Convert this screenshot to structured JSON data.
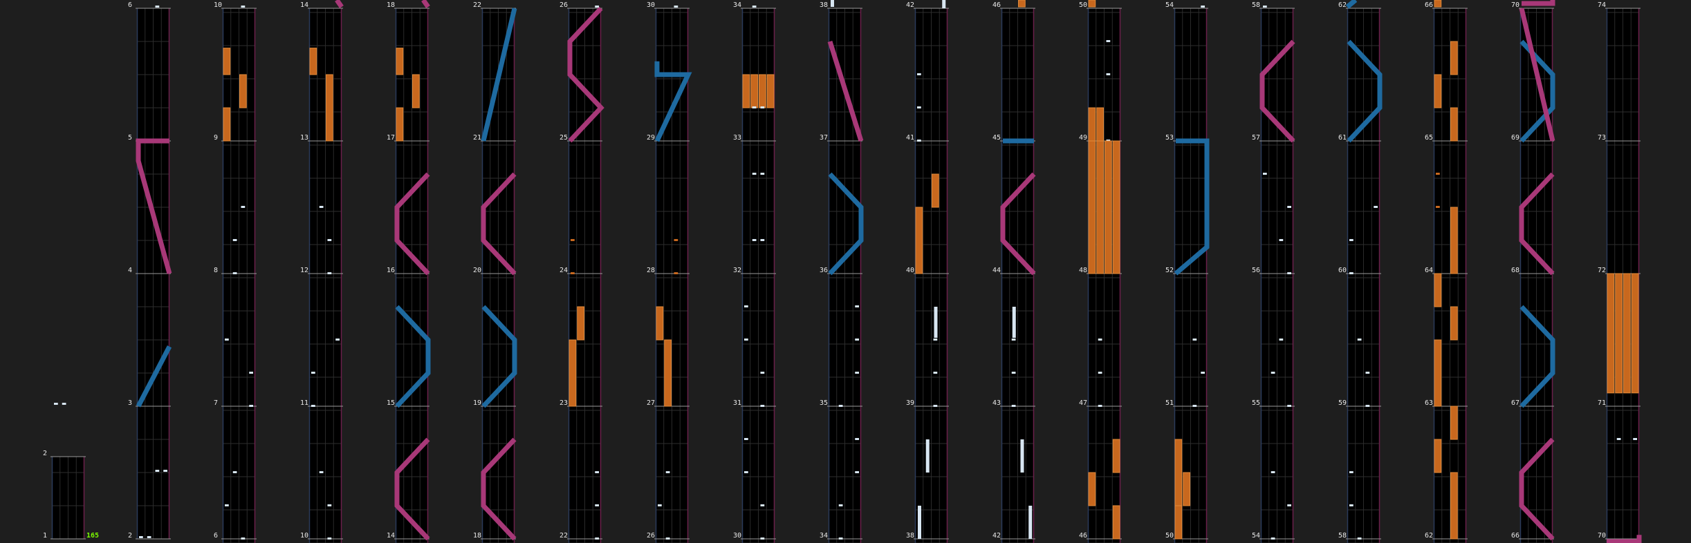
{
  "chart": {
    "bpm": "165",
    "lane_colors": {
      "tap": "#d8e6f2",
      "hold": "#c8681e",
      "slide_left": "#1e6aa0",
      "slide_right": "#a83878",
      "rail_left": "#2a3a5a",
      "rail_right": "#6a1f4a"
    },
    "bars": [
      {
        "n": 1
      },
      {
        "n": 2
      },
      {
        "n": 3
      },
      {
        "n": 4
      },
      {
        "n": 5
      },
      {
        "n": 6
      },
      {
        "n": 7
      },
      {
        "n": 8
      },
      {
        "n": 9
      },
      {
        "n": 10
      },
      {
        "n": 11
      },
      {
        "n": 12
      },
      {
        "n": 13
      },
      {
        "n": 14
      },
      {
        "n": 15
      },
      {
        "n": 16
      },
      {
        "n": 17
      },
      {
        "n": 18
      },
      {
        "n": 19
      },
      {
        "n": 20
      },
      {
        "n": 21
      },
      {
        "n": 22
      },
      {
        "n": 23
      },
      {
        "n": 24
      },
      {
        "n": 25
      },
      {
        "n": 26
      },
      {
        "n": 27
      },
      {
        "n": 28
      },
      {
        "n": 29
      },
      {
        "n": 30
      },
      {
        "n": 31
      },
      {
        "n": 32
      },
      {
        "n": 33
      },
      {
        "n": 34
      },
      {
        "n": 35
      },
      {
        "n": 36
      },
      {
        "n": 37
      },
      {
        "n": 38
      },
      {
        "n": 39
      },
      {
        "n": 40
      },
      {
        "n": 41
      },
      {
        "n": 42
      },
      {
        "n": 43
      },
      {
        "n": 44
      },
      {
        "n": 45
      },
      {
        "n": 46
      },
      {
        "n": 47
      },
      {
        "n": 48
      },
      {
        "n": 49
      },
      {
        "n": 50
      },
      {
        "n": 51
      },
      {
        "n": 52
      },
      {
        "n": 53
      },
      {
        "n": 54
      },
      {
        "n": 55
      },
      {
        "n": 56
      },
      {
        "n": 57
      },
      {
        "n": 58
      },
      {
        "n": 59
      },
      {
        "n": 60
      },
      {
        "n": 61
      },
      {
        "n": 62
      },
      {
        "n": 63
      },
      {
        "n": 64
      },
      {
        "n": 65
      },
      {
        "n": 66
      },
      {
        "n": 67
      },
      {
        "n": 68
      },
      {
        "n": 69
      },
      {
        "n": 70
      },
      {
        "n": 71
      },
      {
        "n": 72
      },
      {
        "n": 73
      },
      {
        "n": 74
      }
    ]
  }
}
